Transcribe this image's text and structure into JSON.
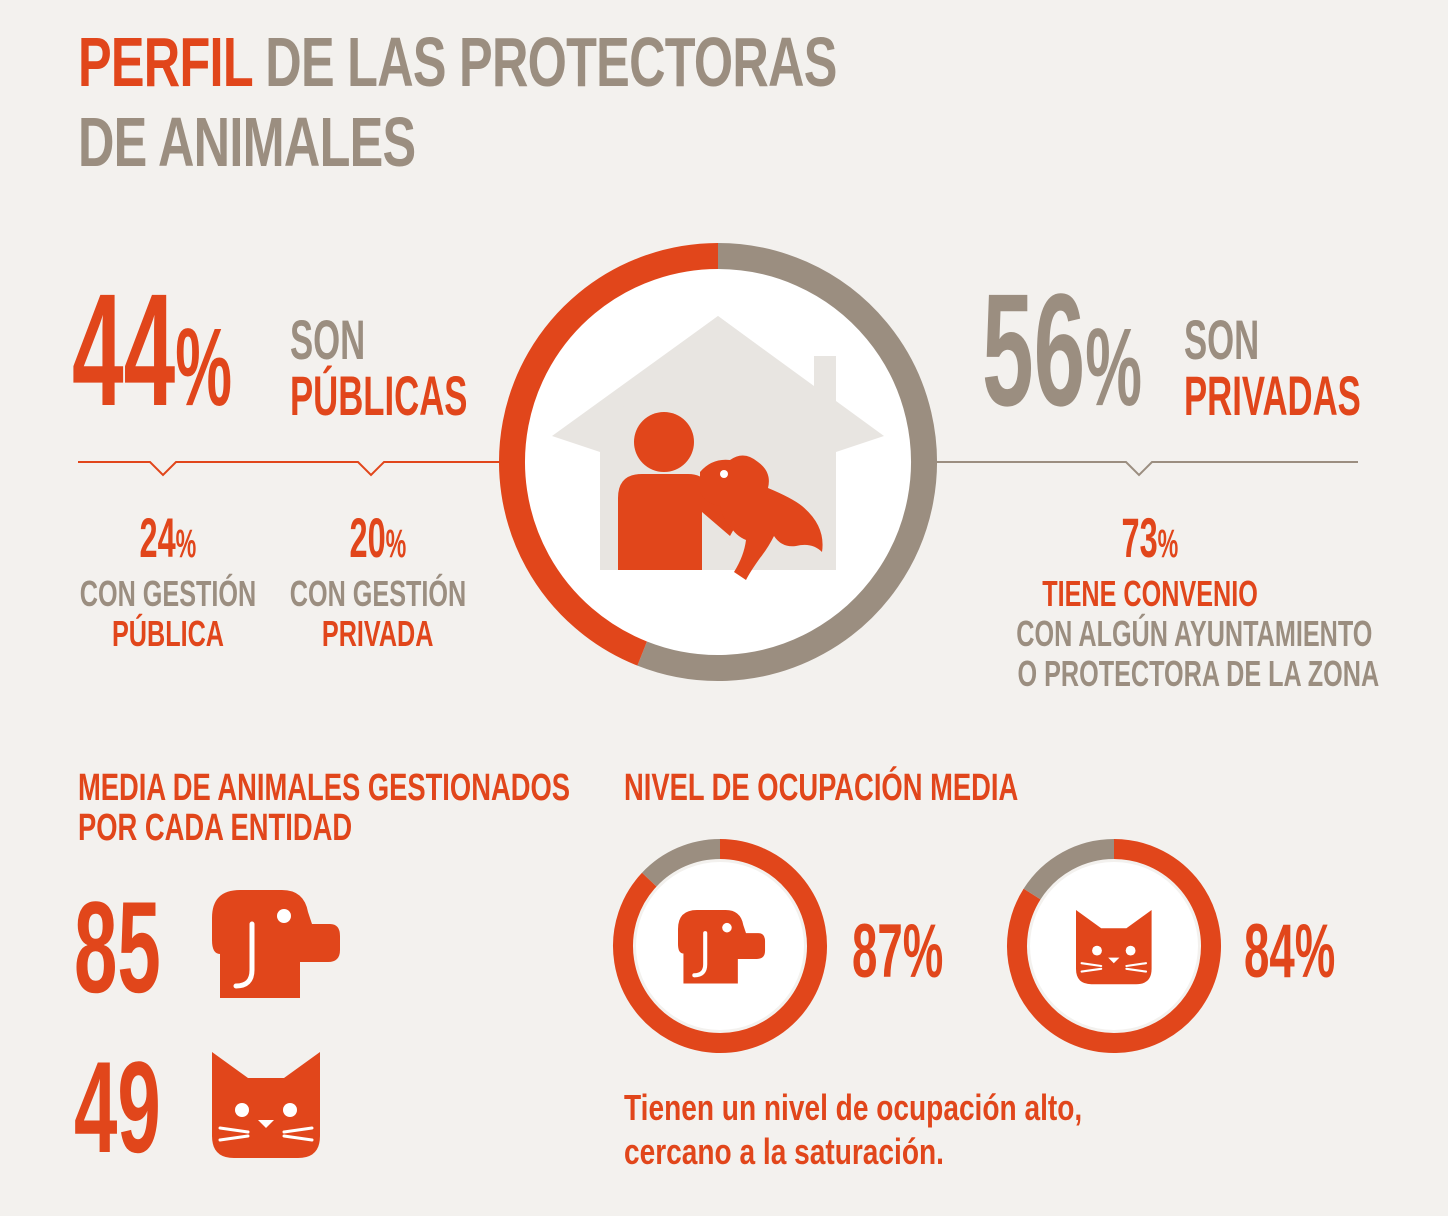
{
  "title": {
    "highlight": "PERFIL",
    "rest": "DE LAS PROTECTORAS",
    "line2": "DE ANIMALES"
  },
  "colors": {
    "accent": "#e1461b",
    "neutral": "#9b8e80",
    "background": "#f3f1ee",
    "house": "#e8e5e1"
  },
  "publicas": {
    "pct": "44",
    "sign": "%",
    "label1": "SON",
    "label2": "PÚBLICAS",
    "sub": [
      {
        "pct": "24",
        "sign": "%",
        "line1": "CON GESTIÓN",
        "line2": "PÚBLICA"
      },
      {
        "pct": "20",
        "sign": "%",
        "line1": "CON GESTIÓN",
        "line2": "PRIVADA"
      }
    ]
  },
  "privadas": {
    "pct": "56",
    "sign": "%",
    "label1": "SON",
    "label2": "PRIVADAS",
    "sub": {
      "pct": "73",
      "sign": "%",
      "line1": "TIENE CONVENIO",
      "line2": "CON ALGÚN AYUNTAMIENTO",
      "line3": "O PROTECTORA DE LA ZONA"
    }
  },
  "media": {
    "title1": "MEDIA DE ANIMALES GESTIONADOS",
    "title2": "POR CADA ENTIDAD",
    "dogs": "85",
    "cats": "49"
  },
  "ocupacion": {
    "title": "NIVEL DE OCUPACIÓN MEDIA",
    "dog_pct": "87%",
    "cat_pct": "84%",
    "note1": "Tienen un nivel de ocupación alto,",
    "note2": "cercano a la saturación."
  },
  "chart_data": [
    {
      "type": "pie",
      "categories": [
        "SON PÚBLICAS",
        "SON PRIVADAS"
      ],
      "values": [
        44,
        56
      ]
    },
    {
      "type": "pie",
      "categories": [
        "NIVEL DE OCUPACIÓN MEDIA"
      ],
      "values": [
        87
      ]
    },
    {
      "type": "pie",
      "categories": [
        "NIVEL DE OCUPACIÓN MEDIA"
      ],
      "values": [
        84
      ]
    }
  ],
  "icons": {
    "main": "house-person-dog-icon",
    "dog": "dog-icon",
    "cat": "cat-icon"
  }
}
